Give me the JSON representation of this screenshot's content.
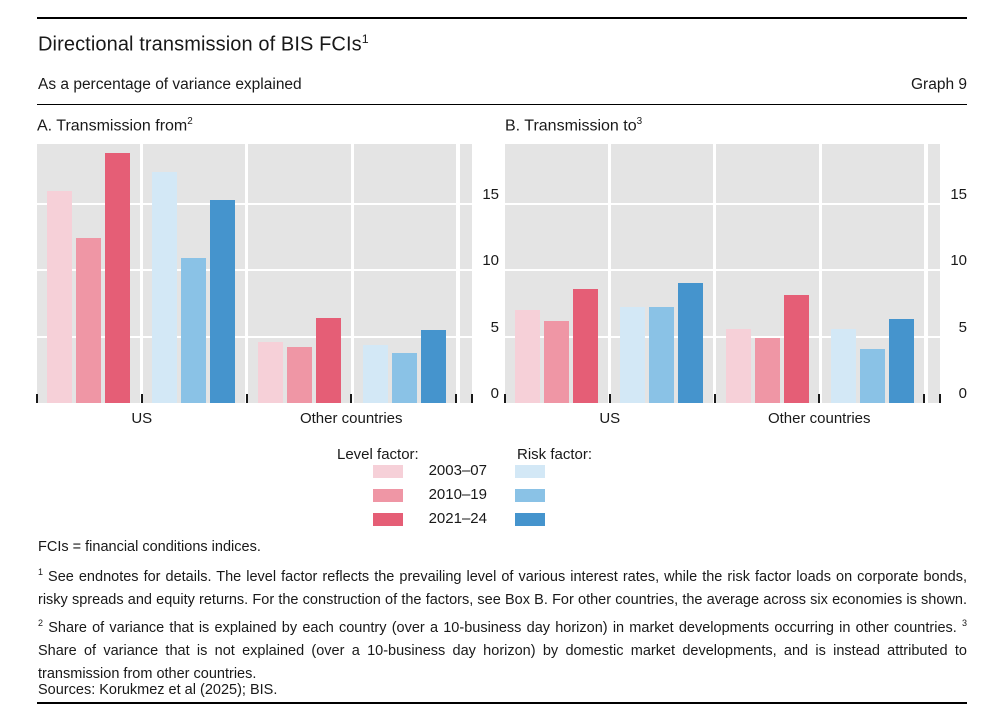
{
  "header": {
    "title": "Directional transmission of BIS FCIs",
    "title_sup": "1",
    "subtitle": "As a percentage of variance explained",
    "graph_label": "Graph 9"
  },
  "chart_data": [
    {
      "type": "bar",
      "panel_id": "A",
      "title": "A. Transmission from",
      "title_sup": "2",
      "categories": [
        "US",
        "Other countries"
      ],
      "series_periods": [
        "2003–07",
        "2010–19",
        "2021–24"
      ],
      "groups": [
        {
          "category": "US",
          "factor": "level",
          "values": [
            16.0,
            12.4,
            18.8
          ]
        },
        {
          "category": "US",
          "factor": "risk",
          "values": [
            17.4,
            10.9,
            15.3
          ]
        },
        {
          "category": "Other countries",
          "factor": "level",
          "values": [
            4.6,
            4.2,
            6.4
          ]
        },
        {
          "category": "Other countries",
          "factor": "risk",
          "values": [
            4.4,
            3.8,
            5.5
          ]
        }
      ],
      "ylabel": "",
      "xlabel": "",
      "ylim": [
        0,
        19.5
      ],
      "yticks": [
        0,
        5,
        10,
        15
      ],
      "grid": true,
      "legend_position": "below"
    },
    {
      "type": "bar",
      "panel_id": "B",
      "title": "B. Transmission to",
      "title_sup": "3",
      "categories": [
        "US",
        "Other countries"
      ],
      "series_periods": [
        "2003–07",
        "2010–19",
        "2021–24"
      ],
      "groups": [
        {
          "category": "US",
          "factor": "level",
          "values": [
            7.0,
            6.2,
            8.6
          ]
        },
        {
          "category": "US",
          "factor": "risk",
          "values": [
            7.2,
            7.2,
            9.0
          ]
        },
        {
          "category": "Other countries",
          "factor": "level",
          "values": [
            5.6,
            4.9,
            8.1
          ]
        },
        {
          "category": "Other countries",
          "factor": "risk",
          "values": [
            5.6,
            4.1,
            6.3
          ]
        }
      ],
      "ylabel": "",
      "xlabel": "",
      "ylim": [
        0,
        19.5
      ],
      "yticks": [
        0,
        5,
        10,
        15
      ],
      "grid": true,
      "legend_position": "below"
    }
  ],
  "legend": {
    "level_label": "Level factor:",
    "risk_label": "Risk factor:",
    "periods": [
      "2003–07",
      "2010–19",
      "2021–24"
    ]
  },
  "colors": {
    "level": [
      "#f6d0d8",
      "#ef96a5",
      "#e55e76"
    ],
    "risk": [
      "#d3e8f6",
      "#8ac2e6",
      "#4594cd"
    ],
    "plot_background": "#e4e4e4",
    "gridline": "#ffffff",
    "text": "#191919"
  },
  "notes": {
    "definition": "FCIs = financial conditions indices.",
    "footnote_segments": [
      {
        "sup": "1",
        "text": "  See endnotes for details.  The level factor reflects the prevailing level of various interest rates, while the risk factor loads on corporate bonds, risky spreads and equity returns. For the construction of the factors, see Box B. For other countries, the average across six economies is shown.    "
      },
      {
        "sup": "2",
        "text": "  Share of variance that is explained by each country (over a 10-business day horizon) in market developments occurring in other countries.    "
      },
      {
        "sup": "3",
        "text": "  Share of variance that is not explained (over a 10-business day horizon) by domestic market developments, and is instead attributed to transmission from other countries."
      }
    ],
    "sources": "Sources: Korukmez et al (2025); BIS."
  }
}
